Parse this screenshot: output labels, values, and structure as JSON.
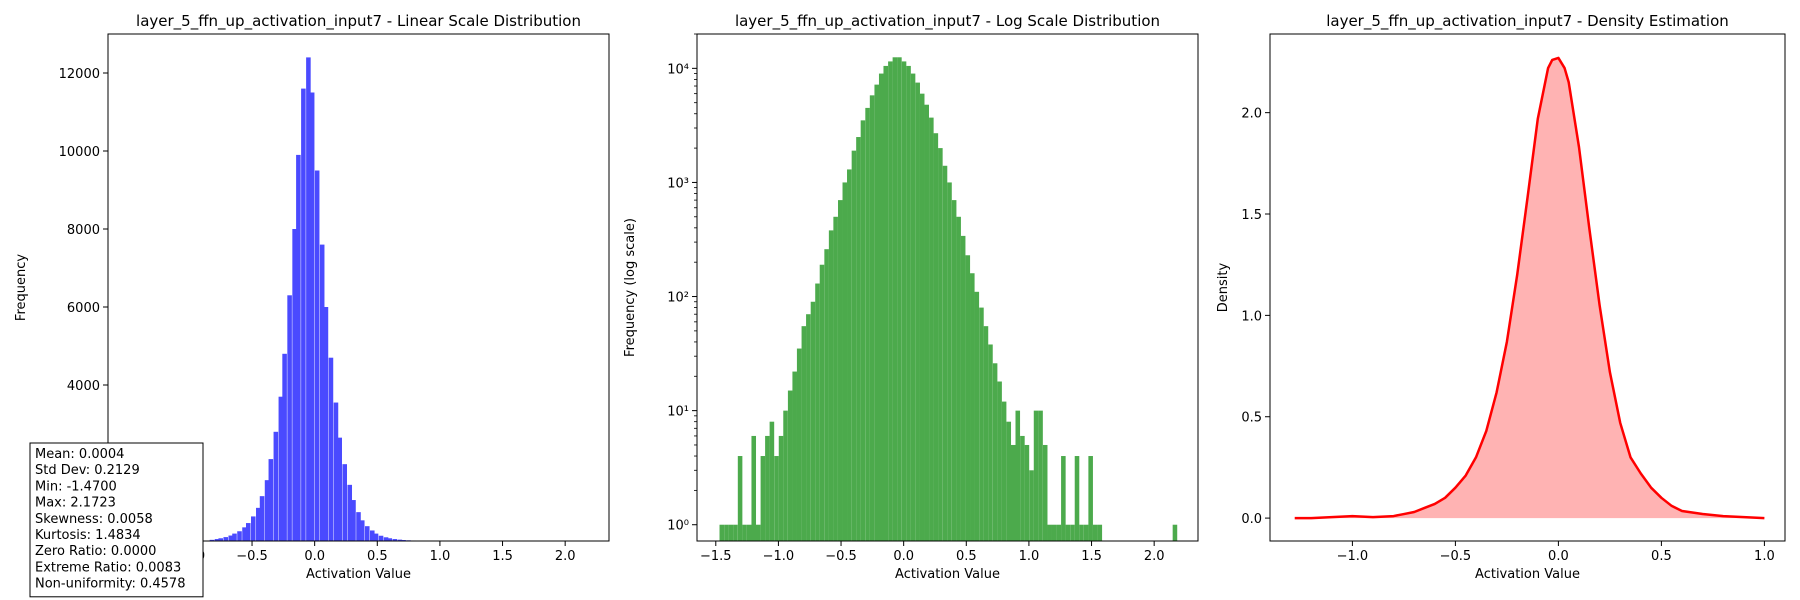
{
  "chart_data": [
    {
      "type": "bar",
      "title": "layer_5_ffn_up_activation_input7 - Linear Scale Distribution",
      "xlabel": "Activation Value",
      "ylabel": "Frequency",
      "xlim": [
        -1.65,
        2.35
      ],
      "ylim": [
        0,
        13000
      ],
      "xticks": [
        -1.0,
        -0.5,
        0.0,
        0.5,
        1.0,
        1.5,
        2.0
      ],
      "xtick_labels": [
        "−1.0",
        "−0.5",
        "0.0",
        "0.5",
        "1.0",
        "1.5",
        "2.0"
      ],
      "yticks": [
        4000,
        6000,
        8000,
        10000,
        12000
      ],
      "ytick_labels": [
        "4000",
        "6000",
        "8000",
        "10000",
        "12000"
      ],
      "color": "#4a4aff",
      "bin_width": 0.0364,
      "bin_centers": [
        -0.82,
        -0.78,
        -0.75,
        -0.71,
        -0.67,
        -0.64,
        -0.6,
        -0.56,
        -0.53,
        -0.49,
        -0.45,
        -0.42,
        -0.38,
        -0.35,
        -0.31,
        -0.27,
        -0.24,
        -0.2,
        -0.16,
        -0.13,
        -0.09,
        -0.05,
        -0.02,
        0.02,
        0.06,
        0.09,
        0.13,
        0.17,
        0.2,
        0.24,
        0.28,
        0.31,
        0.35,
        0.38,
        0.42,
        0.46,
        0.49,
        0.53,
        0.57,
        0.6,
        0.64,
        0.68,
        0.71,
        0.75,
        0.79,
        0.82,
        0.86,
        0.9,
        0.93,
        0.97,
        1.0,
        1.04,
        1.08,
        1.11,
        1.15,
        1.19
      ],
      "values": [
        30,
        50,
        70,
        100,
        140,
        190,
        250,
        350,
        460,
        630,
        850,
        1150,
        1560,
        2100,
        2800,
        3700,
        4800,
        6300,
        8000,
        9900,
        11600,
        12400,
        11500,
        9500,
        7600,
        6000,
        4700,
        3550,
        2650,
        1970,
        1440,
        1050,
        740,
        530,
        380,
        270,
        190,
        135,
        95,
        70,
        50,
        35,
        25,
        18,
        13,
        10,
        7,
        5,
        4,
        3,
        2,
        2,
        1,
        1,
        1,
        1
      ],
      "stats_box": [
        "Mean: 0.0004",
        "Std Dev: 0.2129",
        "Min: -1.4700",
        "Max: 2.1723",
        "Skewness: 0.0058",
        "Kurtosis: 1.4834",
        "Zero Ratio: 0.0000",
        "Extreme Ratio: 0.0083",
        "Non-uniformity: 0.4578"
      ]
    },
    {
      "type": "bar",
      "title": "layer_5_ffn_up_activation_input7 - Log Scale Distribution",
      "xlabel": "Activation Value",
      "ylabel": "Frequency (log scale)",
      "yscale": "log",
      "xlim": [
        -1.65,
        2.35
      ],
      "ylim": [
        0.72,
        20000
      ],
      "xticks": [
        -1.5,
        -1.0,
        -0.5,
        0.0,
        0.5,
        1.0,
        1.5,
        2.0
      ],
      "xtick_labels": [
        "−1.5",
        "−1.0",
        "−0.5",
        "0.0",
        "0.5",
        "1.0",
        "1.5",
        "2.0"
      ],
      "yticks": [
        1,
        10,
        100,
        1000,
        10000
      ],
      "ytick_labels": [
        "10⁰",
        "10¹",
        "10²",
        "10³",
        "10⁴"
      ],
      "color": "#4caa4c",
      "bin_width": 0.0364,
      "bin_centers": [
        -1.452,
        -1.415,
        -1.379,
        -1.343,
        -1.306,
        -1.27,
        -1.233,
        -1.197,
        -1.161,
        -1.124,
        -1.088,
        -1.052,
        -1.015,
        -0.979,
        -0.943,
        -0.906,
        -0.87,
        -0.834,
        -0.797,
        -0.761,
        -0.724,
        -0.688,
        -0.652,
        -0.615,
        -0.579,
        -0.543,
        -0.506,
        -0.47,
        -0.434,
        -0.397,
        -0.361,
        -0.325,
        -0.288,
        -0.252,
        -0.215,
        -0.179,
        -0.143,
        -0.106,
        -0.07,
        -0.034,
        0.003,
        0.039,
        0.075,
        0.112,
        0.148,
        0.184,
        0.221,
        0.257,
        0.293,
        0.33,
        0.366,
        0.403,
        0.439,
        0.475,
        0.512,
        0.548,
        0.584,
        0.621,
        0.657,
        0.693,
        0.73,
        0.766,
        0.802,
        0.839,
        0.875,
        0.911,
        0.948,
        0.984,
        1.021,
        1.057,
        1.093,
        1.13,
        1.166,
        1.202,
        1.239,
        1.275,
        1.311,
        1.348,
        1.384,
        1.42,
        1.457,
        1.493,
        1.529,
        1.566,
        2.166
      ],
      "values": [
        1,
        1,
        1,
        1,
        4,
        1,
        1,
        6,
        1,
        4,
        6,
        8,
        4,
        6,
        10,
        15,
        22,
        35,
        55,
        70,
        90,
        130,
        190,
        260,
        380,
        500,
        700,
        1000,
        1300,
        1900,
        2500,
        3500,
        4500,
        5800,
        7200,
        9000,
        10500,
        11500,
        12500,
        12500,
        11500,
        10500,
        9000,
        7500,
        6000,
        4800,
        3700,
        2700,
        2000,
        1400,
        1000,
        700,
        500,
        340,
        230,
        160,
        110,
        80,
        55,
        38,
        26,
        18,
        12,
        8,
        5,
        10,
        6,
        5,
        3,
        10,
        10,
        5,
        1,
        1,
        1,
        4,
        1,
        1,
        4,
        1,
        1,
        4,
        1,
        1,
        1
      ],
      "stats_box": []
    },
    {
      "type": "area",
      "title": "layer_5_ffn_up_activation_input7 - Density Estimation",
      "xlabel": "Activation Value",
      "ylabel": "Density",
      "xlim": [
        -1.4,
        1.1
      ],
      "ylim": [
        -0.113,
        2.388
      ],
      "xticks": [
        -1.0,
        -0.5,
        0.0,
        0.5,
        1.0
      ],
      "xtick_labels": [
        "−1.0",
        "−0.5",
        "0.0",
        "0.5",
        "1.0"
      ],
      "yticks": [
        0.0,
        0.5,
        1.0,
        1.5,
        2.0
      ],
      "ytick_labels": [
        "0.0",
        "0.5",
        "1.0",
        "1.5",
        "2.0"
      ],
      "line_color": "#ff0000",
      "fill_color": "#ffb3b3",
      "x": [
        -1.28,
        -1.2,
        -1.1,
        -1.0,
        -0.9,
        -0.8,
        -0.75,
        -0.7,
        -0.65,
        -0.6,
        -0.55,
        -0.5,
        -0.45,
        -0.4,
        -0.35,
        -0.3,
        -0.25,
        -0.2,
        -0.15,
        -0.1,
        -0.05,
        -0.03,
        0.0,
        0.03,
        0.05,
        0.1,
        0.15,
        0.2,
        0.25,
        0.3,
        0.35,
        0.4,
        0.45,
        0.5,
        0.55,
        0.6,
        0.7,
        0.8,
        0.9,
        1.0
      ],
      "y": [
        0.0,
        0.0,
        0.005,
        0.01,
        0.005,
        0.01,
        0.02,
        0.03,
        0.05,
        0.07,
        0.1,
        0.15,
        0.21,
        0.3,
        0.43,
        0.62,
        0.87,
        1.2,
        1.58,
        1.97,
        2.22,
        2.26,
        2.27,
        2.22,
        2.15,
        1.83,
        1.43,
        1.05,
        0.72,
        0.47,
        0.3,
        0.22,
        0.15,
        0.1,
        0.06,
        0.035,
        0.02,
        0.01,
        0.005,
        0.0
      ]
    }
  ]
}
